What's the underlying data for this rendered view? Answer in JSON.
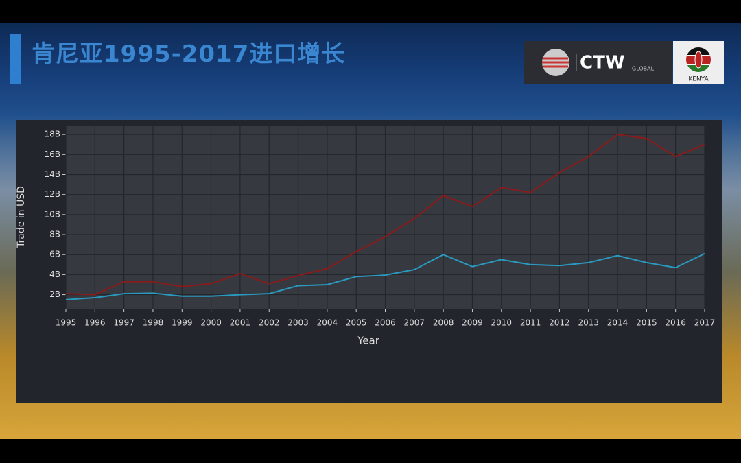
{
  "header": {
    "title": "肯尼亚1995-2017进口增长",
    "logo_text": "CTW",
    "logo_sub": "GLOBAL",
    "country": "KENYA"
  },
  "chart_data": {
    "type": "line",
    "x_label": "Year",
    "y_label": "Trade in USD",
    "x": [
      1995,
      1996,
      1997,
      1998,
      1999,
      2000,
      2001,
      2002,
      2003,
      2004,
      2005,
      2006,
      2007,
      2008,
      2009,
      2010,
      2011,
      2012,
      2013,
      2014,
      2015,
      2016,
      2017
    ],
    "series": [
      {
        "color": "#8b1a1a",
        "values": [
          2.1,
          2.0,
          3.3,
          3.3,
          2.8,
          3.1,
          4.1,
          3.1,
          3.9,
          4.6,
          6.3,
          7.8,
          9.6,
          11.9,
          10.8,
          12.7,
          12.2,
          14.2,
          15.8,
          18.0,
          17.6,
          15.8,
          17.0
        ]
      },
      {
        "color": "#2a9ac0",
        "values": [
          1.5,
          1.7,
          2.1,
          2.15,
          1.85,
          1.85,
          2.0,
          2.1,
          2.9,
          3.0,
          3.8,
          3.95,
          4.5,
          6.0,
          4.8,
          5.5,
          5.0,
          4.9,
          5.2,
          5.9,
          5.2,
          4.7,
          6.1
        ]
      }
    ],
    "xlim": [
      1995,
      2017
    ],
    "xticks": [
      1995,
      1996,
      1997,
      1998,
      1999,
      2000,
      2001,
      2002,
      2003,
      2004,
      2005,
      2006,
      2007,
      2008,
      2009,
      2010,
      2011,
      2012,
      2013,
      2014,
      2015,
      2016,
      2017
    ],
    "ylim": [
      0.6,
      18.9
    ],
    "yticks": [
      {
        "value": 2,
        "label": "2B"
      },
      {
        "value": 4,
        "label": "4B"
      },
      {
        "value": 6,
        "label": "6B"
      },
      {
        "value": 8,
        "label": "8B"
      },
      {
        "value": 10,
        "label": "10B"
      },
      {
        "value": 12,
        "label": "12B"
      },
      {
        "value": 14,
        "label": "14B"
      },
      {
        "value": 16,
        "label": "16B"
      },
      {
        "value": 18,
        "label": "18B"
      }
    ],
    "grid": true
  }
}
